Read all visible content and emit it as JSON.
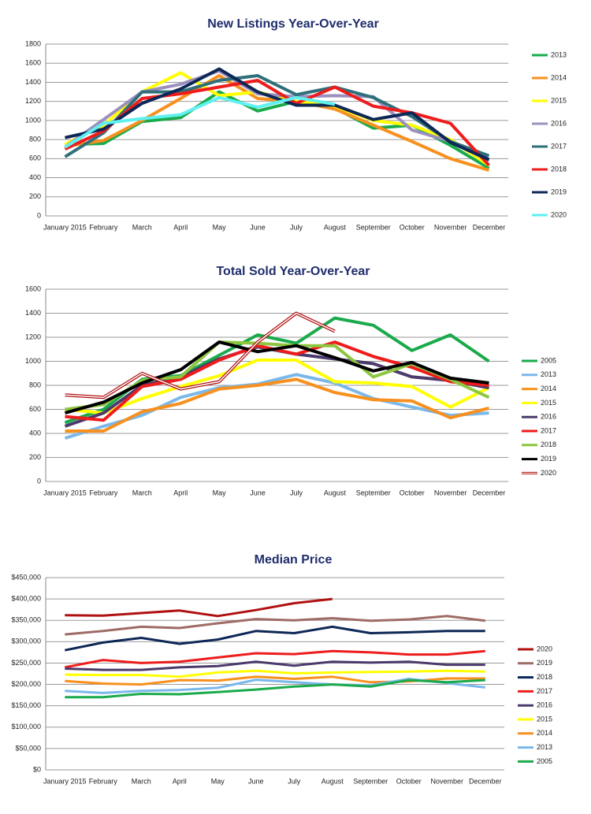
{
  "chart_data": [
    {
      "type": "line",
      "title": "New Listings Year-Over-Year",
      "categories": [
        "January 2015",
        "February",
        "March",
        "April",
        "May",
        "June",
        "July",
        "August",
        "September",
        "October",
        "November",
        "December"
      ],
      "ylim": [
        0,
        1800
      ],
      "yticks": [
        0,
        200,
        400,
        600,
        800,
        1000,
        1200,
        1400,
        1600,
        1800
      ],
      "grid": true,
      "legend": "right",
      "series": [
        {
          "name": "2013",
          "color": "#1aaa4b",
          "values": [
            750,
            760,
            990,
            1030,
            1300,
            1100,
            1200,
            1130,
            920,
            950,
            740,
            500
          ]
        },
        {
          "name": "2014",
          "color": "#f7901e",
          "values": [
            730,
            790,
            1000,
            1230,
            1470,
            1230,
            1200,
            1120,
            950,
            780,
            600,
            480
          ]
        },
        {
          "name": "2015",
          "color": "#ffff00",
          "values": [
            750,
            950,
            1300,
            1500,
            1260,
            1300,
            1200,
            1150,
            1000,
            950,
            800,
            530
          ]
        },
        {
          "name": "2016",
          "color": "#9b8fbf",
          "values": [
            720,
            1010,
            1300,
            1380,
            1520,
            1280,
            1250,
            1260,
            1250,
            900,
            780,
            580
          ]
        },
        {
          "name": "2017",
          "color": "#2e6f7a",
          "values": [
            620,
            870,
            1300,
            1300,
            1420,
            1470,
            1270,
            1350,
            1240,
            1040,
            780,
            630
          ]
        },
        {
          "name": "2018",
          "color": "#ee1c1c",
          "values": [
            700,
            890,
            1230,
            1280,
            1350,
            1420,
            1180,
            1350,
            1150,
            1080,
            970,
            530
          ]
        },
        {
          "name": "2019",
          "color": "#0d2756",
          "values": [
            820,
            910,
            1180,
            1330,
            1540,
            1300,
            1160,
            1160,
            1010,
            1080,
            770,
            590
          ]
        },
        {
          "name": "2020",
          "color": "#5ff0f0",
          "values": [
            720,
            970,
            1020,
            1060,
            1240,
            1140,
            1240,
            1170,
            null,
            null,
            null,
            null
          ]
        }
      ]
    },
    {
      "type": "line",
      "title": "Total Sold Year-Over-Year",
      "categories": [
        "January 2015",
        "February",
        "March",
        "April",
        "May",
        "June",
        "July",
        "August",
        "September",
        "October",
        "November",
        "December"
      ],
      "ylim": [
        0,
        1600
      ],
      "yticks": [
        0,
        200,
        400,
        600,
        800,
        1000,
        1200,
        1400,
        1600
      ],
      "grid": true,
      "legend": "right",
      "series": [
        {
          "name": "2005",
          "color": "#1aaa4b",
          "values": [
            490,
            600,
            850,
            880,
            1050,
            1220,
            1150,
            1360,
            1300,
            1090,
            1220,
            1000
          ]
        },
        {
          "name": "2013",
          "color": "#7ab8ea",
          "values": [
            360,
            460,
            550,
            700,
            780,
            810,
            890,
            820,
            690,
            620,
            550,
            570
          ]
        },
        {
          "name": "2014",
          "color": "#f7901e",
          "values": [
            420,
            420,
            580,
            650,
            770,
            800,
            850,
            740,
            680,
            670,
            530,
            610
          ]
        },
        {
          "name": "2015",
          "color": "#ffff00",
          "values": [
            600,
            570,
            690,
            790,
            880,
            1010,
            1010,
            830,
            820,
            790,
            620,
            780
          ]
        },
        {
          "name": "2016",
          "color": "#4b3a6b",
          "values": [
            460,
            570,
            800,
            870,
            1020,
            1120,
            1060,
            1020,
            980,
            870,
            840,
            780
          ]
        },
        {
          "name": "2017",
          "color": "#ee1c1c",
          "values": [
            540,
            510,
            790,
            850,
            1010,
            1130,
            1060,
            1160,
            1040,
            950,
            830,
            800
          ]
        },
        {
          "name": "2018",
          "color": "#8dc63f",
          "values": [
            600,
            640,
            840,
            870,
            1160,
            1150,
            1130,
            1130,
            870,
            980,
            850,
            700
          ]
        },
        {
          "name": "2019",
          "color": "#000000",
          "values": [
            570,
            660,
            820,
            930,
            1160,
            1080,
            1130,
            1030,
            920,
            990,
            860,
            820
          ]
        },
        {
          "name": "2020",
          "color": "#b01010",
          "outline": true,
          "values": [
            720,
            700,
            900,
            770,
            830,
            1160,
            1400,
            1250,
            null,
            null,
            null,
            null
          ]
        }
      ]
    },
    {
      "type": "line",
      "title": "Median Price",
      "categories": [
        "January 2015",
        "February",
        "March",
        "April",
        "May",
        "June",
        "July",
        "August",
        "September",
        "October",
        "November",
        "December"
      ],
      "ylim": [
        0,
        450000
      ],
      "yticks": [
        {
          "value": 0,
          "label": "$0"
        },
        {
          "value": 50000,
          "label": "$50,000"
        },
        {
          "value": 100000,
          "label": "$100,000"
        },
        {
          "value": 150000,
          "label": "$150,000"
        },
        {
          "value": 200000,
          "label": "$200,000"
        },
        {
          "value": 250000,
          "label": "$250,000"
        },
        {
          "value": 300000,
          "label": "$300,000"
        },
        {
          "value": 350000,
          "label": "$350,000"
        },
        {
          "value": 400000,
          "label": "$400,000"
        },
        {
          "value": 450000,
          "label": "$450,000"
        }
      ],
      "grid": true,
      "legend": "right",
      "series": [
        {
          "name": "2020",
          "color": "#b01010",
          "values": [
            362000,
            361000,
            367000,
            373000,
            360000,
            374000,
            390000,
            400000,
            null,
            null,
            null,
            null
          ]
        },
        {
          "name": "2019",
          "color": "#9e6b66",
          "values": [
            317000,
            325000,
            335000,
            332000,
            343000,
            353000,
            350000,
            355000,
            349000,
            352000,
            360000,
            349000
          ]
        },
        {
          "name": "2018",
          "color": "#0d2756",
          "values": [
            280000,
            298000,
            309000,
            295000,
            305000,
            325000,
            320000,
            335000,
            320000,
            322000,
            325000,
            325000
          ]
        },
        {
          "name": "2017",
          "color": "#ee1c1c",
          "values": [
            240000,
            257000,
            250000,
            253000,
            263000,
            273000,
            271000,
            278000,
            275000,
            270000,
            270000,
            278000
          ]
        },
        {
          "name": "2016",
          "color": "#4b3a6b",
          "values": [
            237000,
            234000,
            234000,
            240000,
            243000,
            253000,
            244000,
            253000,
            251000,
            253000,
            246000,
            246000
          ]
        },
        {
          "name": "2015",
          "color": "#ffff00",
          "values": [
            223000,
            222000,
            222000,
            218000,
            228000,
            232000,
            226000,
            228000,
            229000,
            230000,
            232000,
            230000
          ]
        },
        {
          "name": "2014",
          "color": "#f7901e",
          "values": [
            208000,
            202000,
            200000,
            210000,
            209000,
            218000,
            213000,
            218000,
            205000,
            207000,
            214000,
            214000
          ]
        },
        {
          "name": "2013",
          "color": "#7ab8ea",
          "values": [
            185000,
            180000,
            185000,
            187000,
            192000,
            211000,
            205000,
            200000,
            198000,
            213000,
            203000,
            193000
          ]
        },
        {
          "name": "2005",
          "color": "#1aaa4b",
          "values": [
            170000,
            170000,
            178000,
            177000,
            182000,
            188000,
            195000,
            200000,
            195000,
            210000,
            205000,
            210000
          ]
        }
      ]
    }
  ]
}
